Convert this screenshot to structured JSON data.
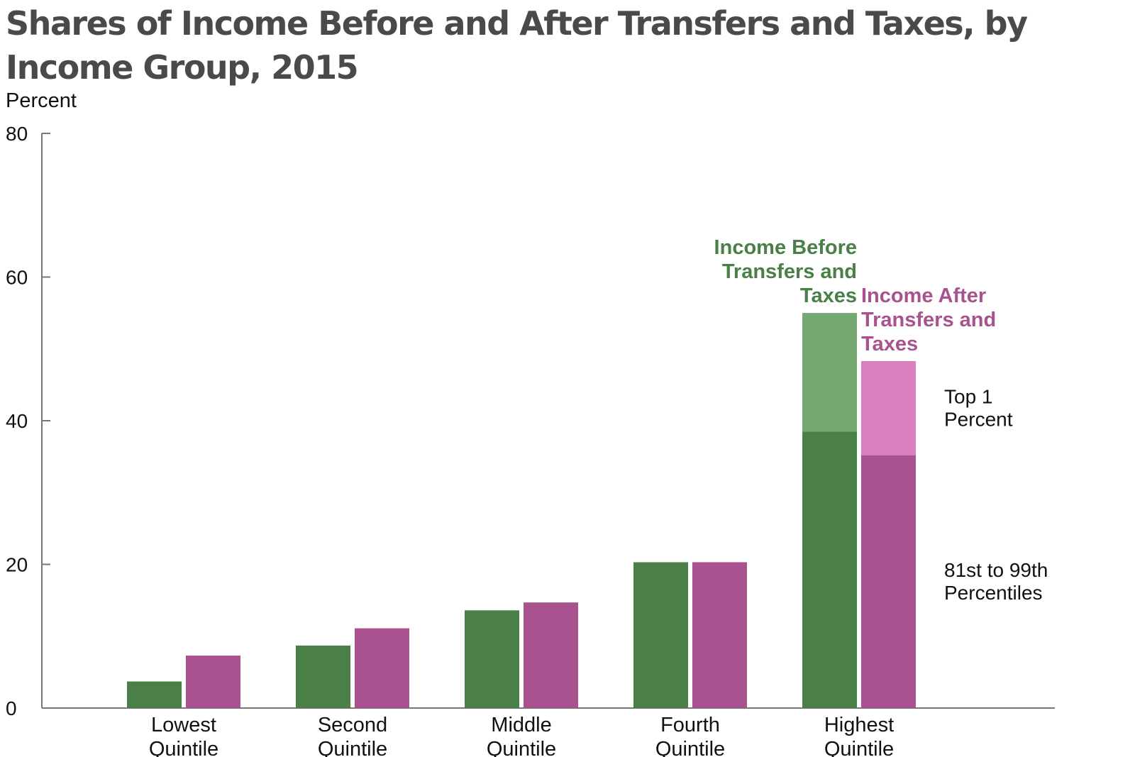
{
  "chart_data": {
    "type": "bar",
    "title": "Shares of Income Before and After Transfers and Taxes, by Income Group, 2015",
    "ylabel": "Percent",
    "xlabel": "",
    "ylim": [
      0,
      80
    ],
    "yticks": [
      "0",
      "20",
      "40",
      "60",
      "80"
    ],
    "grid": false,
    "categories": [
      [
        "Lowest",
        "Quintile"
      ],
      [
        "Second",
        "Quintile"
      ],
      [
        "Middle",
        "Quintile"
      ],
      [
        "Fourth",
        "Quintile"
      ],
      [
        "Highest",
        "Quintile"
      ]
    ],
    "series": [
      {
        "name": "Income Before Transfers and Taxes",
        "label_lines": [
          "Income Before",
          "Transfers and",
          "Taxes"
        ],
        "color": "#4a7f48",
        "light_color": "#76a972",
        "values": [
          3.7,
          8.7,
          13.6,
          20.3,
          55.0
        ],
        "top_segment_base": [
          null,
          null,
          null,
          null,
          38.5
        ]
      },
      {
        "name": "Income After Transfers and Taxes",
        "label_lines": [
          "Income After",
          "Transfers and",
          "Taxes"
        ],
        "color": "#a9528f",
        "light_color": "#d97fbd",
        "values": [
          7.3,
          11.1,
          14.7,
          20.3,
          48.3
        ],
        "top_segment_base": [
          null,
          null,
          null,
          null,
          35.2
        ]
      }
    ],
    "segment_labels": [
      {
        "lines": [
          "Top 1",
          "Percent"
        ]
      },
      {
        "lines": [
          "81st to 99th",
          "Percentiles"
        ]
      }
    ]
  }
}
